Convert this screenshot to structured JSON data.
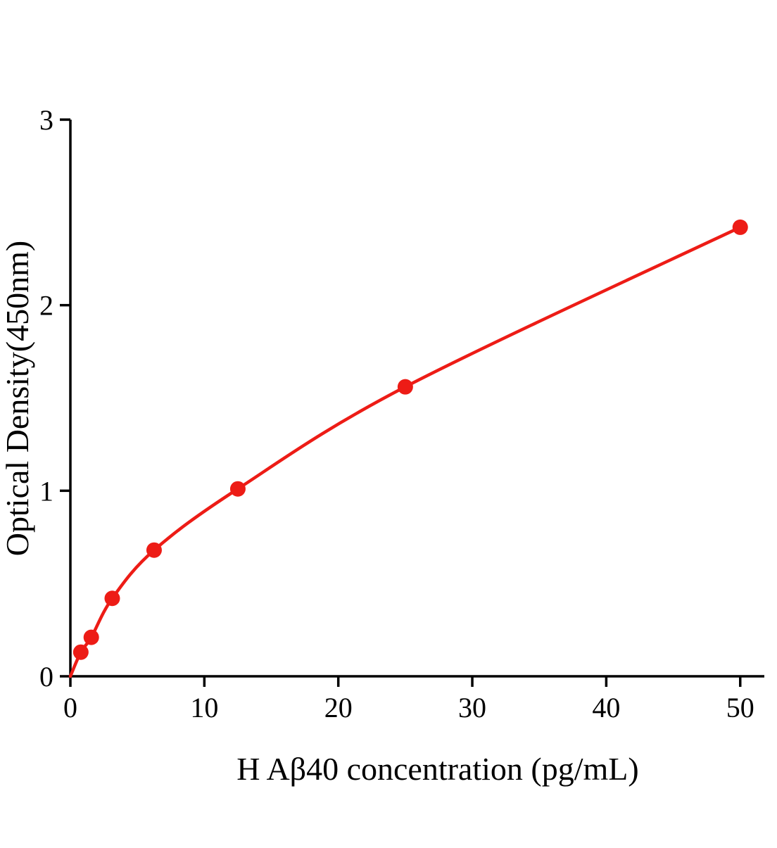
{
  "chart_data": {
    "type": "scatter",
    "title": "",
    "xlabel": "H Aβ40 concentration (pg/mL)",
    "ylabel": "Optical Density(450nm)",
    "x": [
      0.78,
      1.56,
      3.125,
      6.25,
      12.5,
      25,
      50
    ],
    "y": [
      0.13,
      0.21,
      0.42,
      0.68,
      1.01,
      1.56,
      2.42
    ],
    "curve_start": [
      0,
      0
    ],
    "xlim": [
      0,
      51.8
    ],
    "ylim": [
      0,
      3
    ],
    "xticks": [
      0,
      10,
      20,
      30,
      40,
      50
    ],
    "yticks": [
      0,
      1,
      2,
      3
    ],
    "grid": false,
    "legend": null,
    "has_fit_line": true,
    "marker_color": "#ed1c16",
    "line_color": "#ed1c16",
    "axis_color": "#000000"
  }
}
